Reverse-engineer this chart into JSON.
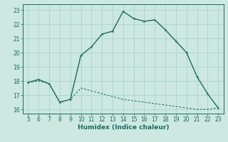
{
  "xlabel": "Humidex (Indice chaleur)",
  "background_color": "#cce8e0",
  "grid_color": "#aad4cc",
  "line_color": "#1a6b60",
  "xlim": [
    4.5,
    23.5
  ],
  "ylim": [
    15.7,
    23.4
  ],
  "xticks": [
    5,
    6,
    7,
    8,
    9,
    10,
    11,
    12,
    13,
    14,
    15,
    16,
    17,
    18,
    19,
    20,
    21,
    22,
    23
  ],
  "yticks": [
    16,
    17,
    18,
    19,
    20,
    21,
    22,
    23
  ],
  "x_main": [
    5,
    6,
    7,
    8,
    9,
    10,
    11,
    12,
    13,
    14,
    15,
    16,
    17,
    18,
    19,
    20,
    21,
    22,
    23
  ],
  "y_main": [
    17.9,
    18.1,
    17.8,
    16.5,
    16.7,
    19.8,
    20.4,
    21.3,
    21.5,
    22.9,
    22.4,
    22.2,
    22.3,
    21.6,
    20.8,
    20.0,
    18.3,
    17.1,
    16.1
  ],
  "x_lower": [
    5,
    6,
    7,
    8,
    9,
    10,
    11,
    12,
    13,
    14,
    15,
    16,
    17,
    18,
    19,
    20,
    21,
    22,
    23
  ],
  "y_lower": [
    17.9,
    18.0,
    17.8,
    16.5,
    16.7,
    17.5,
    17.3,
    17.1,
    16.9,
    16.7,
    16.6,
    16.5,
    16.4,
    16.3,
    16.2,
    16.1,
    16.0,
    16.0,
    16.1
  ],
  "xlabel_fontsize": 6.5,
  "tick_fontsize": 5.5
}
